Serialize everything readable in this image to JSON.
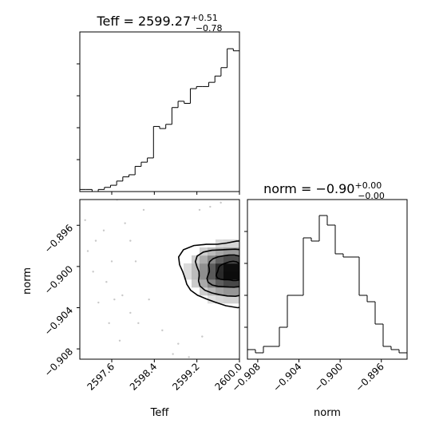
{
  "chart_data": [
    {
      "type": "histogram",
      "panel": "top-left",
      "parameter": "Teff",
      "title": {
        "prefix": "Teff = 2599.27",
        "sup": "+0.51",
        "sub": "−0.78"
      },
      "x_range": [
        2597.0,
        2600.0
      ],
      "bins": 26,
      "counts": [
        1,
        1,
        0,
        1,
        2,
        3,
        5,
        7,
        8,
        12,
        14,
        16,
        31,
        30,
        32,
        40,
        43,
        42,
        49,
        50,
        50,
        52,
        55,
        59,
        68,
        67
      ],
      "y_range": [
        0,
        76
      ],
      "y_ticks_unlabeled": 4
    },
    {
      "type": "histogram",
      "panel": "bottom-right",
      "parameter": "norm",
      "title": {
        "prefix": "norm = −0.90",
        "sup": "+0.00",
        "sub": "−0.00"
      },
      "x_range": [
        -0.909,
        -0.8935
      ],
      "bins": 20,
      "counts": [
        3,
        2,
        4,
        4,
        10,
        20,
        20,
        38,
        37,
        45,
        42,
        33,
        32,
        32,
        20,
        18,
        11,
        4,
        3,
        2
      ],
      "y_range": [
        0,
        50
      ],
      "x_ticks": [
        "−0.908",
        "−0.904",
        "−0.900",
        "−0.896"
      ],
      "x_tick_values": [
        -0.908,
        -0.904,
        -0.9,
        -0.896
      ],
      "xlabel": "norm"
    },
    {
      "type": "heatmap",
      "panel": "bottom-left",
      "subtype": "2d-histogram-with-contours",
      "x_param": "Teff",
      "y_param": "norm",
      "xlabel": "Teff",
      "ylabel": "norm",
      "x_range": [
        2597.0,
        2600.0
      ],
      "y_range": [
        -0.909,
        -0.8935
      ],
      "x_ticks": [
        "2597.6",
        "2598.4",
        "2599.2",
        "2600.0"
      ],
      "x_tick_values": [
        2597.6,
        2598.4,
        2599.2,
        2600.0
      ],
      "y_ticks": [
        "−0.896",
        "−0.900",
        "−0.904",
        "−0.908"
      ],
      "y_tick_values": [
        -0.896,
        -0.9,
        -0.904,
        -0.908
      ],
      "grid": {
        "x_bins": 20,
        "y_bins": 20
      },
      "density_peak": {
        "x": 2599.85,
        "y": -0.9005
      },
      "contour_levels": 4,
      "scatter_points": [
        [
          2597.1,
          -0.8955
        ],
        [
          2597.3,
          -0.8975
        ],
        [
          2597.45,
          -0.8965
        ],
        [
          2597.6,
          -0.8995
        ],
        [
          2597.25,
          -0.9005
        ],
        [
          2597.5,
          -0.9015
        ],
        [
          2597.7,
          -0.8935
        ],
        [
          2597.85,
          -0.8958
        ],
        [
          2597.95,
          -0.9045
        ],
        [
          2597.55,
          -0.9055
        ],
        [
          2597.8,
          -0.9028
        ],
        [
          2597.95,
          -0.8975
        ],
        [
          2598.05,
          -0.8995
        ],
        [
          2598.1,
          -0.9055
        ],
        [
          2597.65,
          -0.9032
        ],
        [
          2597.35,
          -0.9035
        ],
        [
          2598.2,
          -0.8945
        ],
        [
          2598.75,
          -0.9085
        ],
        [
          2599.25,
          -0.8945
        ],
        [
          2599.45,
          -0.8942
        ],
        [
          2599.65,
          -0.8938
        ],
        [
          2599.3,
          -0.9068
        ],
        [
          2598.55,
          -0.9062
        ],
        [
          2598.85,
          -0.9075
        ],
        [
          2597.15,
          -0.8985
        ],
        [
          2597.75,
          -0.9072
        ],
        [
          2599.05,
          -0.9088
        ],
        [
          2598.3,
          -0.9032
        ]
      ]
    }
  ]
}
